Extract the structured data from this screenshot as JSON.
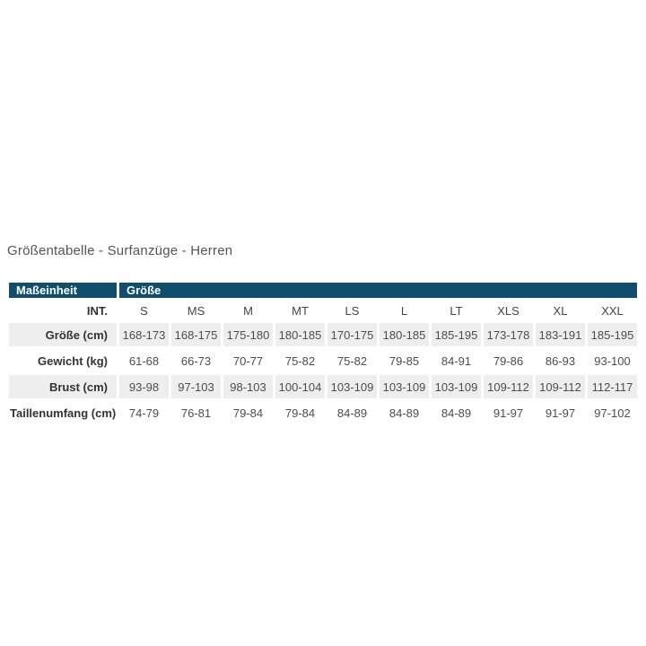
{
  "title": "Größentabelle - Surfanzüge - Herren",
  "colors": {
    "header_bg": "#104e6e",
    "header_text": "#ffffff",
    "shaded_cell_bg": "#efeeee",
    "label_text": "#333333",
    "value_text": "#4d4d4d",
    "title_text": "#555555",
    "page_bg": "#ffffff"
  },
  "table": {
    "header": {
      "measure_label": "Maßeinheit",
      "size_label": "Größe"
    },
    "int_row": {
      "label": "INT.",
      "sizes": [
        "S",
        "MS",
        "M",
        "MT",
        "LS",
        "L",
        "LT",
        "XLS",
        "XL",
        "XXL"
      ]
    },
    "rows": [
      {
        "label": "Größe (cm)",
        "values": [
          "168-173",
          "168-175",
          "175-180",
          "180-185",
          "170-175",
          "180-185",
          "185-195",
          "173-178",
          "183-191",
          "185-195"
        ]
      },
      {
        "label": "Gewicht (kg)",
        "values": [
          "61-68",
          "66-73",
          "70-77",
          "75-82",
          "75-82",
          "79-85",
          "84-91",
          "79-86",
          "86-93",
          "93-100"
        ]
      },
      {
        "label": "Brust (cm)",
        "values": [
          "93-98",
          "97-103",
          "98-103",
          "100-104",
          "103-109",
          "103-109",
          "103-109",
          "109-112",
          "109-112",
          "112-117"
        ]
      },
      {
        "label": "Taillenumfang (cm)",
        "values": [
          "74-79",
          "76-81",
          "79-84",
          "79-84",
          "84-89",
          "84-89",
          "84-89",
          "91-97",
          "91-97",
          "97-102"
        ]
      }
    ]
  }
}
